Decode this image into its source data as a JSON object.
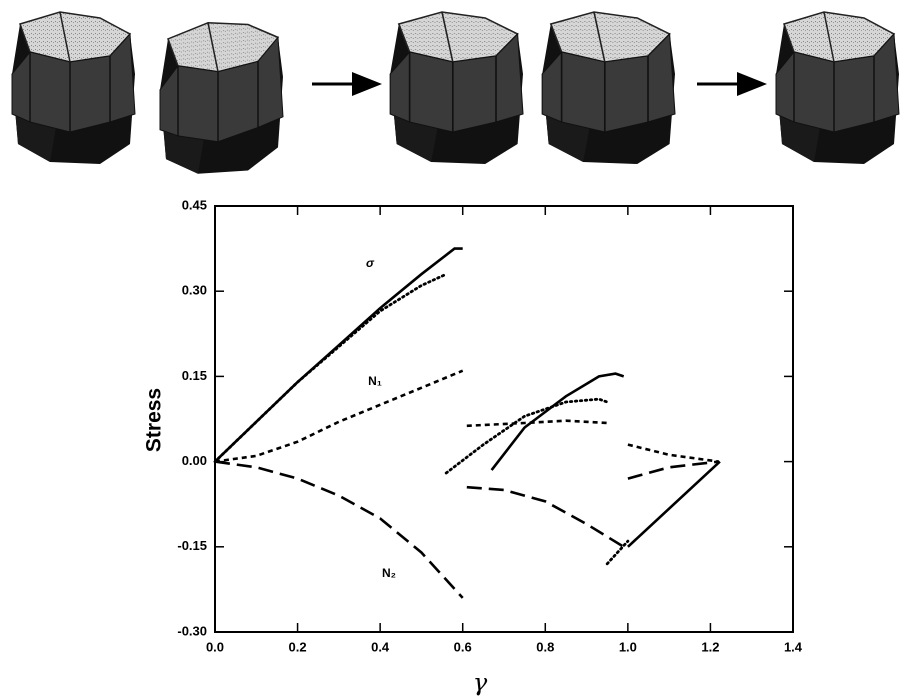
{
  "chart_data": {
    "type": "line",
    "xlabel": "γ",
    "ylabel": "Stress",
    "annotations": [
      "σ",
      "N₁",
      "N₂"
    ],
    "xlim": [
      0,
      1.4
    ],
    "xticks": [
      {
        "value": 0,
        "label": "0.0"
      },
      {
        "value": 0.2,
        "label": "0.2"
      },
      {
        "value": 0.4,
        "label": "0.4"
      },
      {
        "value": 0.6,
        "label": "0.6"
      },
      {
        "value": 0.8,
        "label": "0.8"
      },
      {
        "value": 1.0,
        "label": "1.0"
      },
      {
        "value": 1.2,
        "label": "1.2"
      },
      {
        "value": 1.4,
        "label": "1.4"
      }
    ],
    "ylim": [
      -0.3,
      0.45
    ],
    "yticks": [
      {
        "value": -0.3,
        "label": "-0.30"
      },
      {
        "value": -0.15,
        "label": "-0.15"
      },
      {
        "value": 0,
        "label": "0.00"
      },
      {
        "value": 0.15,
        "label": "0.15"
      },
      {
        "value": 0.3,
        "label": "0.30"
      },
      {
        "value": 0.45,
        "label": "0.45"
      }
    ],
    "series": [
      {
        "color": "#000000",
        "dash": "solid",
        "x": [
          0,
          0.1,
          0.2,
          0.3,
          0.4,
          0.5,
          0.58,
          0.6,
          null,
          0.67,
          0.75,
          0.85,
          0.93,
          0.97,
          0.99,
          null,
          1.0,
          1.223
        ],
        "values": [
          0,
          0.07,
          0.14,
          0.205,
          0.27,
          0.33,
          0.375,
          0.375,
          null,
          -0.015,
          0.06,
          0.115,
          0.15,
          0.155,
          0.15,
          null,
          -0.15,
          0.0
        ]
      },
      {
        "color": "#000000",
        "dash": "dotted",
        "x": [
          0,
          0.2,
          0.4,
          0.5,
          0.56,
          null,
          0.56,
          0.65,
          0.75,
          0.85,
          0.93,
          0.95,
          null,
          0.95,
          1.0
        ],
        "values": [
          0,
          0.14,
          0.265,
          0.31,
          0.33,
          null,
          -0.02,
          0.03,
          0.08,
          0.105,
          0.11,
          0.105,
          null,
          -0.18,
          -0.14
        ]
      },
      {
        "color": "#000000",
        "dash": "dashed",
        "x": [
          0,
          0.1,
          0.2,
          0.3,
          0.4,
          0.5,
          0.6,
          null,
          0.61,
          0.75,
          0.85,
          0.95,
          null,
          1.0,
          1.1,
          1.22
        ],
        "values": [
          0,
          0.01,
          0.035,
          0.07,
          0.1,
          0.13,
          0.16,
          null,
          0.063,
          0.068,
          0.072,
          0.068,
          null,
          0.03,
          0.012,
          0.0
        ]
      },
      {
        "color": "#000000",
        "dash": "longdash",
        "x": [
          0,
          0.1,
          0.2,
          0.3,
          0.4,
          0.5,
          0.6,
          null,
          0.61,
          0.7,
          0.8,
          0.9,
          0.99,
          null,
          1.0,
          1.1,
          1.22
        ],
        "values": [
          0,
          -0.01,
          -0.03,
          -0.06,
          -0.1,
          -0.16,
          -0.24,
          null,
          -0.045,
          -0.05,
          -0.07,
          -0.11,
          -0.15,
          null,
          -0.03,
          -0.01,
          0.0
        ]
      }
    ]
  }
}
